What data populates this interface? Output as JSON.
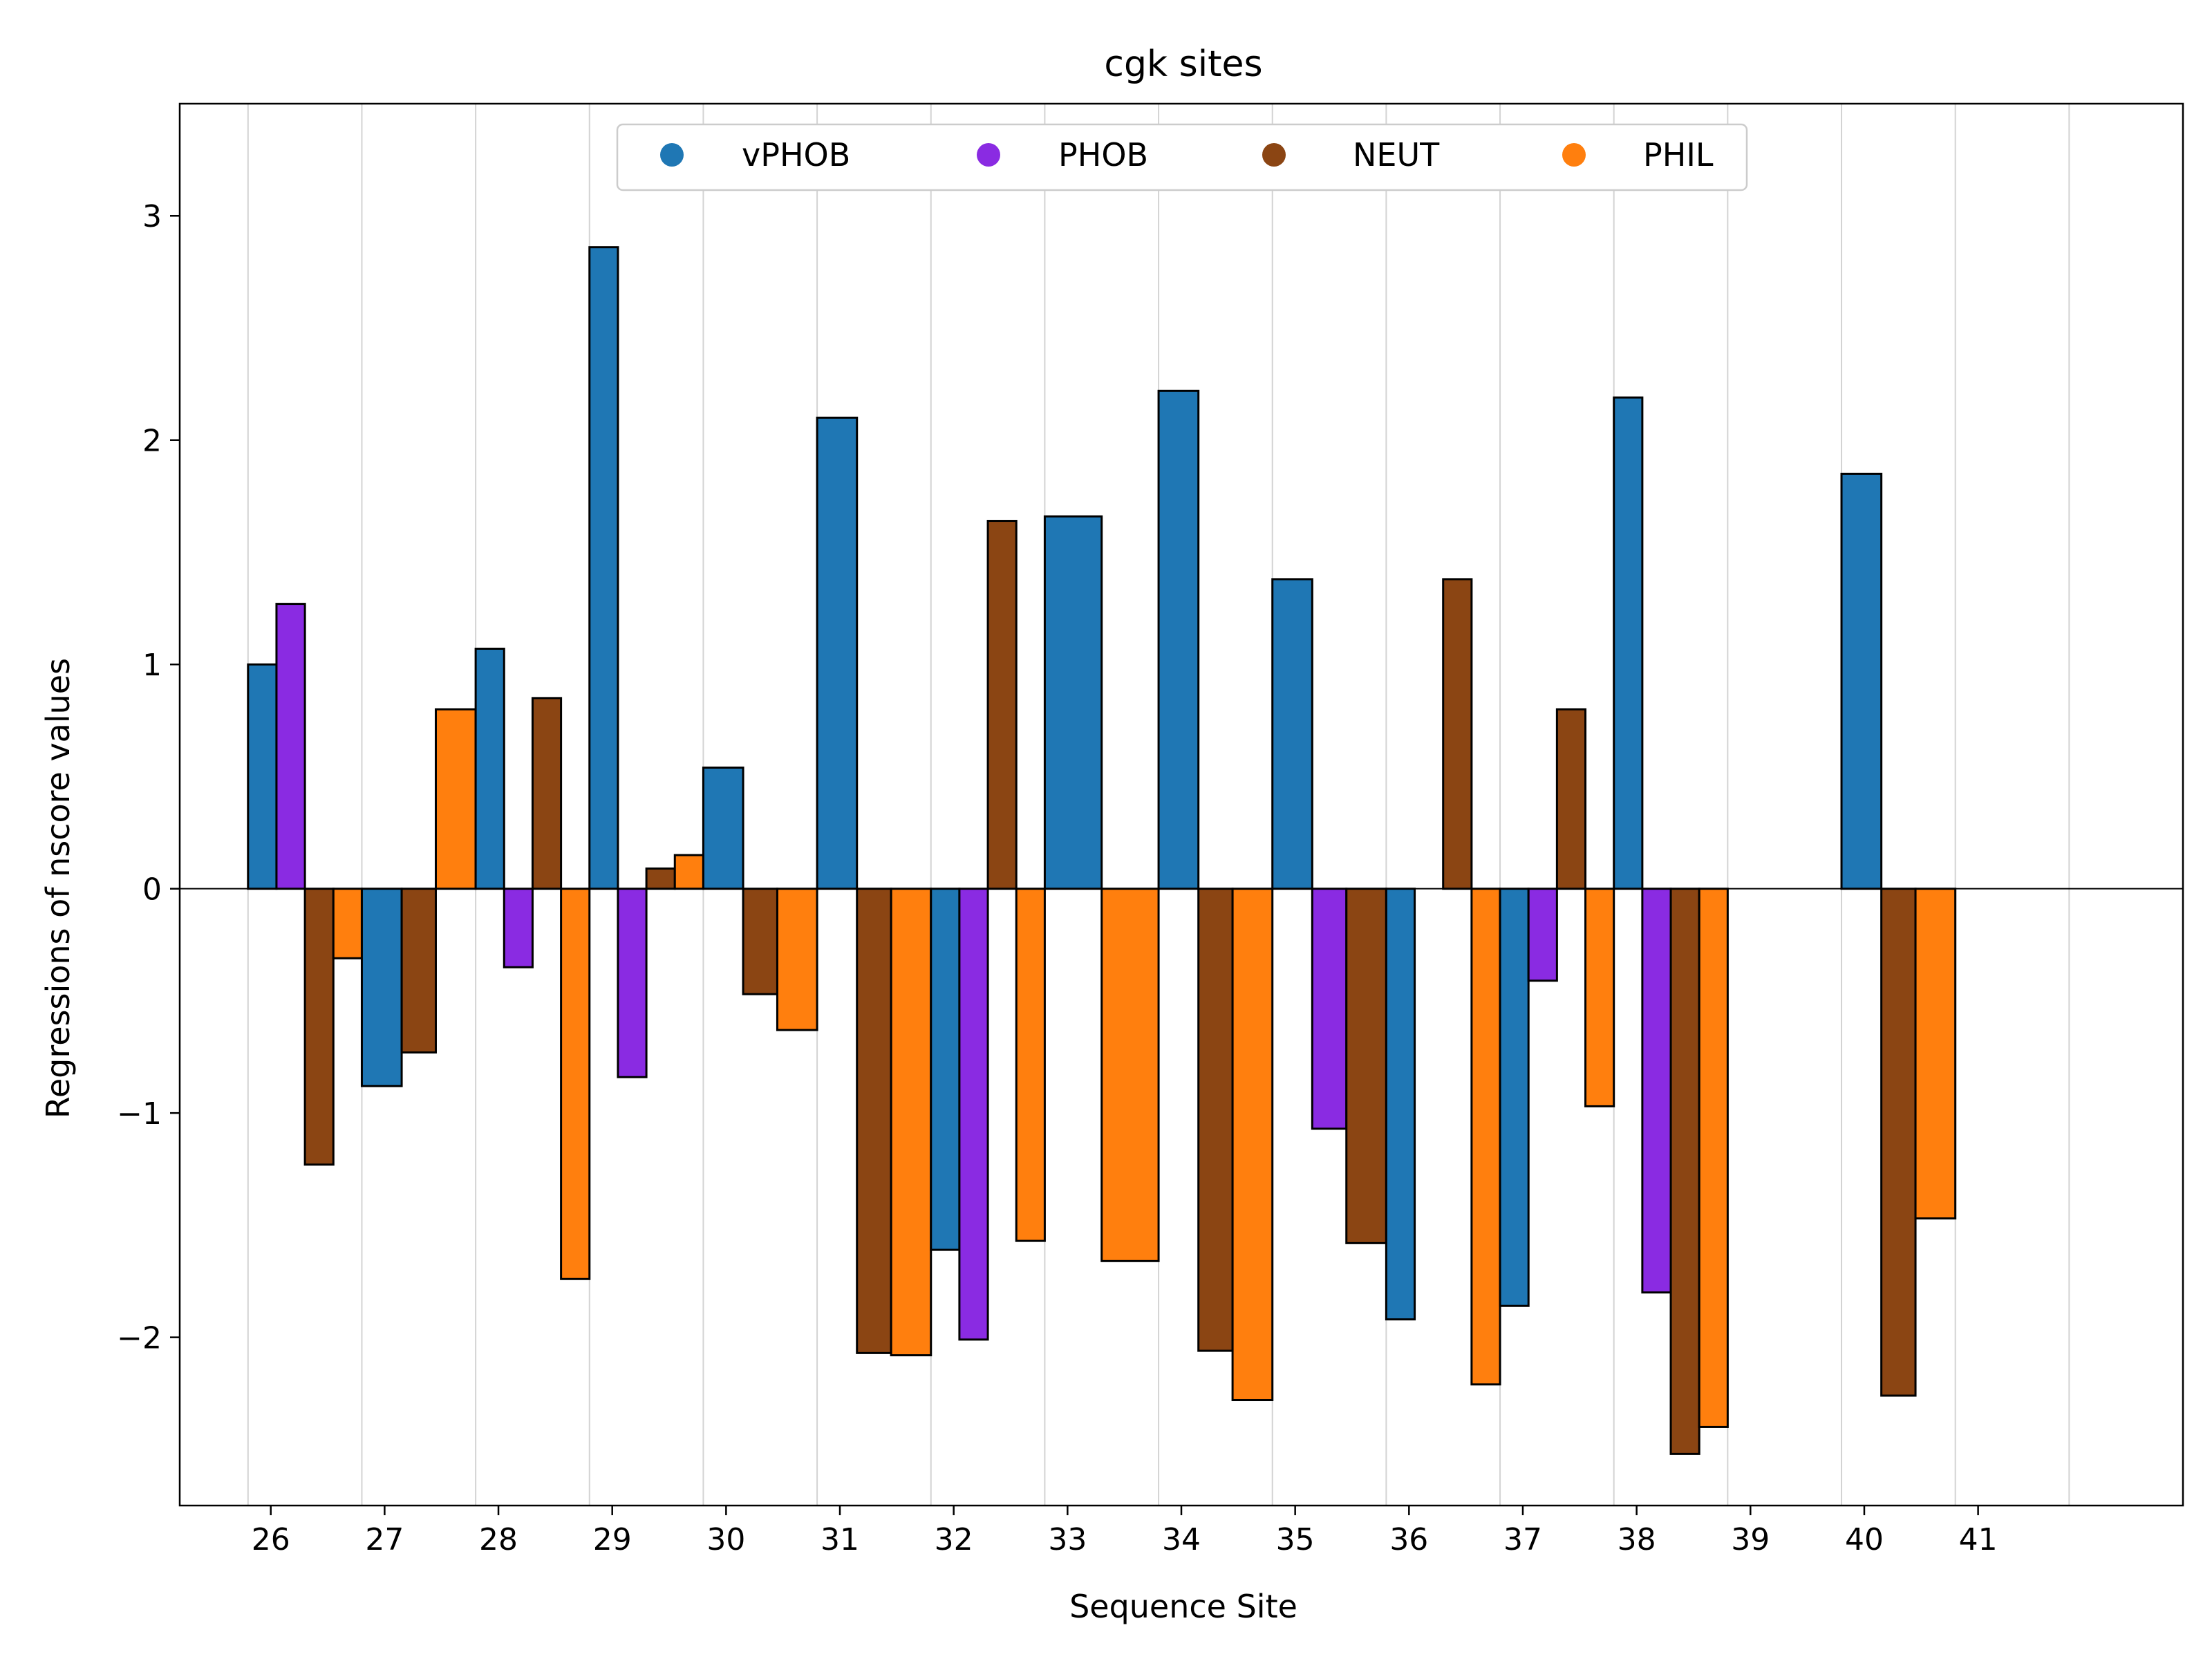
{
  "chart_data": {
    "type": "bar",
    "title": "cgk sites",
    "xlabel": "Sequence Site",
    "ylabel": "Regressions of nscore values",
    "xlim": [
      25.2,
      42.8
    ],
    "ylim": [
      -2.75,
      3.5
    ],
    "x_ticks": [
      26,
      27,
      28,
      29,
      30,
      31,
      32,
      33,
      34,
      35,
      36,
      37,
      38,
      39,
      40,
      41
    ],
    "y_ticks": [
      -2,
      -1,
      0,
      1,
      2,
      3
    ],
    "y_tick_labels": [
      "−2",
      "−1",
      "0",
      "1",
      "2",
      "3"
    ],
    "separator_lines": [
      25.8,
      26.8,
      27.8,
      28.8,
      29.8,
      30.8,
      31.8,
      32.8,
      33.8,
      34.8,
      35.8,
      36.8,
      37.8,
      38.8,
      39.8,
      40.8,
      41.8
    ],
    "grid": "vertical separators only",
    "legend_position": "top-center",
    "bar_width": 0.25,
    "series_colors": {
      "vPHOB": "#1f77b4",
      "PHOB": "#8a2be2",
      "NEUT": "#8b4513",
      "PHIL": "#ff7f0e"
    },
    "legend": [
      {
        "name": "vPHOB",
        "color": "#1f77b4"
      },
      {
        "name": "PHOB",
        "color": "#8a2be2"
      },
      {
        "name": "NEUT",
        "color": "#8b4513"
      },
      {
        "name": "PHIL",
        "color": "#ff7f0e"
      }
    ],
    "bars": [
      {
        "series": "vPHOB",
        "x0": 25.8,
        "x1": 26.05,
        "value": 1.0
      },
      {
        "series": "PHOB",
        "x0": 26.05,
        "x1": 26.3,
        "value": 1.27
      },
      {
        "series": "NEUT",
        "x0": 26.3,
        "x1": 26.55,
        "value": -1.23
      },
      {
        "series": "PHIL",
        "x0": 26.55,
        "x1": 26.8,
        "value": -0.31
      },
      {
        "series": "vPHOB",
        "x0": 26.8,
        "x1": 27.15,
        "value": -0.88
      },
      {
        "series": "NEUT",
        "x0": 27.15,
        "x1": 27.45,
        "value": -0.73
      },
      {
        "series": "PHIL",
        "x0": 27.45,
        "x1": 27.8,
        "value": 0.8
      },
      {
        "series": "vPHOB",
        "x0": 27.8,
        "x1": 28.05,
        "value": 1.07
      },
      {
        "series": "PHOB",
        "x0": 28.05,
        "x1": 28.3,
        "value": -0.35
      },
      {
        "series": "NEUT",
        "x0": 28.3,
        "x1": 28.55,
        "value": 0.85
      },
      {
        "series": "PHIL",
        "x0": 28.55,
        "x1": 28.8,
        "value": -1.74
      },
      {
        "series": "vPHOB",
        "x0": 28.8,
        "x1": 29.05,
        "value": 2.86
      },
      {
        "series": "PHOB",
        "x0": 29.05,
        "x1": 29.3,
        "value": -0.84
      },
      {
        "series": "NEUT",
        "x0": 29.3,
        "x1": 29.55,
        "value": 0.09
      },
      {
        "series": "PHIL",
        "x0": 29.55,
        "x1": 29.8,
        "value": 0.15
      },
      {
        "series": "vPHOB",
        "x0": 29.8,
        "x1": 30.15,
        "value": 0.54
      },
      {
        "series": "NEUT",
        "x0": 30.15,
        "x1": 30.45,
        "value": -0.47
      },
      {
        "series": "PHIL",
        "x0": 30.45,
        "x1": 30.8,
        "value": -0.63
      },
      {
        "series": "vPHOB",
        "x0": 30.8,
        "x1": 31.15,
        "value": 2.1
      },
      {
        "series": "NEUT",
        "x0": 31.15,
        "x1": 31.45,
        "value": -2.07
      },
      {
        "series": "PHIL",
        "x0": 31.45,
        "x1": 31.8,
        "value": -2.08
      },
      {
        "series": "vPHOB",
        "x0": 31.8,
        "x1": 32.05,
        "value": -1.61
      },
      {
        "series": "PHOB",
        "x0": 32.05,
        "x1": 32.3,
        "value": -2.01
      },
      {
        "series": "NEUT",
        "x0": 32.3,
        "x1": 32.55,
        "value": 1.64
      },
      {
        "series": "PHIL",
        "x0": 32.55,
        "x1": 32.8,
        "value": -1.57
      },
      {
        "series": "vPHOB",
        "x0": 32.8,
        "x1": 33.3,
        "value": 1.66
      },
      {
        "series": "PHIL",
        "x0": 33.3,
        "x1": 33.8,
        "value": -1.66
      },
      {
        "series": "vPHOB",
        "x0": 33.8,
        "x1": 34.15,
        "value": 2.22
      },
      {
        "series": "NEUT",
        "x0": 34.15,
        "x1": 34.45,
        "value": -2.06
      },
      {
        "series": "PHIL",
        "x0": 34.45,
        "x1": 34.8,
        "value": -2.28
      },
      {
        "series": "vPHOB",
        "x0": 34.8,
        "x1": 35.15,
        "value": 1.38
      },
      {
        "series": "PHOB",
        "x0": 35.15,
        "x1": 35.45,
        "value": -1.07
      },
      {
        "series": "NEUT",
        "x0": 35.45,
        "x1": 35.8,
        "value": -1.58
      },
      {
        "series": "vPHOB",
        "x0": 35.8,
        "x1": 36.05,
        "value": -1.92
      },
      {
        "series": "PHOB",
        "x0": 36.05,
        "x1": 36.3,
        "value": 0.0
      },
      {
        "series": "NEUT",
        "x0": 36.3,
        "x1": 36.55,
        "value": 1.38
      },
      {
        "series": "PHIL",
        "x0": 36.55,
        "x1": 36.8,
        "value": -2.21
      },
      {
        "series": "vPHOB",
        "x0": 36.8,
        "x1": 37.05,
        "value": -1.86
      },
      {
        "series": "PHOB",
        "x0": 37.05,
        "x1": 37.3,
        "value": -0.41
      },
      {
        "series": "NEUT",
        "x0": 37.3,
        "x1": 37.55,
        "value": 0.8
      },
      {
        "series": "PHIL",
        "x0": 37.55,
        "x1": 37.8,
        "value": -0.97
      },
      {
        "series": "vPHOB",
        "x0": 37.8,
        "x1": 38.05,
        "value": 2.19
      },
      {
        "series": "PHOB",
        "x0": 38.05,
        "x1": 38.3,
        "value": -1.8
      },
      {
        "series": "NEUT",
        "x0": 38.3,
        "x1": 38.55,
        "value": -2.52
      },
      {
        "series": "PHIL",
        "x0": 38.55,
        "x1": 38.8,
        "value": -2.4
      },
      {
        "series": "vPHOB",
        "x0": 39.8,
        "x1": 40.15,
        "value": 1.85
      },
      {
        "series": "NEUT",
        "x0": 40.15,
        "x1": 40.45,
        "value": -2.26
      },
      {
        "series": "PHIL",
        "x0": 40.45,
        "x1": 40.8,
        "value": -1.47
      }
    ]
  }
}
